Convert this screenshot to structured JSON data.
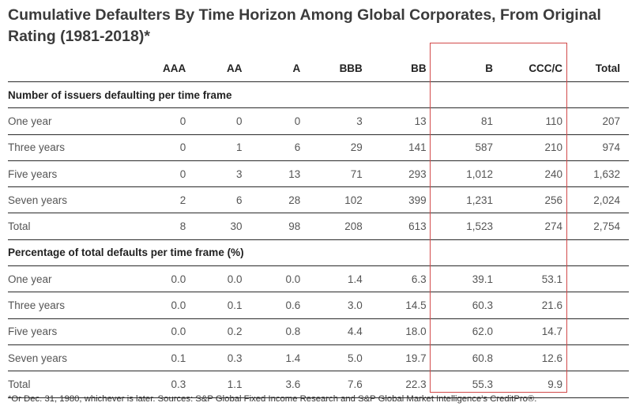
{
  "title": "Cumulative Defaulters By Time Horizon Among Global Corporates, From Original Rating (1981-2018)*",
  "footnote": "*Or Dec. 31, 1980, whichever is later. Sources: S&P Global Fixed Income Research and S&P Global Market Intelligence's CreditPro®.",
  "highlight_color": "#d24a4a",
  "highlighted_columns": [
    "B",
    "CCC/C"
  ],
  "chart_data": {
    "type": "table",
    "columns": [
      "",
      "AAA",
      "AA",
      "A",
      "BBB",
      "BB",
      "B",
      "CCC/C",
      "Total"
    ],
    "sections": [
      {
        "heading": "Number of issuers defaulting per time frame",
        "rows": [
          {
            "label": "One year",
            "values": [
              "0",
              "0",
              "0",
              "3",
              "13",
              "81",
              "110",
              "207"
            ]
          },
          {
            "label": "Three years",
            "values": [
              "0",
              "1",
              "6",
              "29",
              "141",
              "587",
              "210",
              "974"
            ]
          },
          {
            "label": "Five years",
            "values": [
              "0",
              "3",
              "13",
              "71",
              "293",
              "1,012",
              "240",
              "1,632"
            ]
          },
          {
            "label": "Seven years",
            "values": [
              "2",
              "6",
              "28",
              "102",
              "399",
              "1,231",
              "256",
              "2,024"
            ]
          },
          {
            "label": "Total",
            "values": [
              "8",
              "30",
              "98",
              "208",
              "613",
              "1,523",
              "274",
              "2,754"
            ]
          }
        ]
      },
      {
        "heading": "Percentage of total defaults per time frame (%)",
        "rows": [
          {
            "label": "One year",
            "values": [
              "0.0",
              "0.0",
              "0.0",
              "1.4",
              "6.3",
              "39.1",
              "53.1",
              ""
            ]
          },
          {
            "label": "Three years",
            "values": [
              "0.0",
              "0.1",
              "0.6",
              "3.0",
              "14.5",
              "60.3",
              "21.6",
              ""
            ]
          },
          {
            "label": "Five years",
            "values": [
              "0.0",
              "0.2",
              "0.8",
              "4.4",
              "18.0",
              "62.0",
              "14.7",
              ""
            ]
          },
          {
            "label": "Seven years",
            "values": [
              "0.1",
              "0.3",
              "1.4",
              "5.0",
              "19.7",
              "60.8",
              "12.6",
              ""
            ]
          },
          {
            "label": "Total",
            "values": [
              "0.3",
              "1.1",
              "3.6",
              "7.6",
              "22.3",
              "55.3",
              "9.9",
              ""
            ]
          }
        ]
      }
    ]
  }
}
